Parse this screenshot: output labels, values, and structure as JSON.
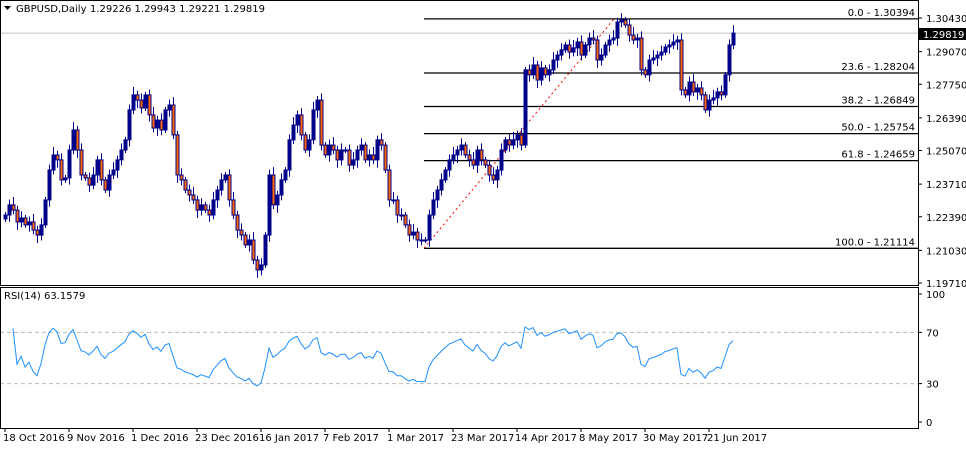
{
  "header": {
    "symbol": "GBPUSD,Daily",
    "ohlc": "1.29226 1.29943 1.29221 1.29819"
  },
  "current_price_label": "1.29819",
  "rsi_label": "RSI(14) 63.1579",
  "colors": {
    "bull": "#00008B",
    "bear": "#FF6600",
    "rsi_line": "#1E90FF",
    "fib_line": "#000000",
    "trend_line": "#FF0000",
    "price_line": "#C0C0C0"
  },
  "chart_data": {
    "type": "candlestick",
    "title": "GBPUSD,Daily",
    "ylim": [
      1.1971,
      1.3043
    ],
    "price_ticks": [
      "1.30430",
      "1.29070",
      "1.27750",
      "1.26390",
      "1.25070",
      "1.23710",
      "1.22390",
      "1.21030",
      "1.19710"
    ],
    "first_open": 1.223,
    "closes": [
      1.2246,
      1.2287,
      1.2266,
      1.2218,
      1.2234,
      1.2206,
      1.2218,
      1.2185,
      1.2165,
      1.2206,
      1.2307,
      1.2428,
      1.2489,
      1.2469,
      1.2388,
      1.2396,
      1.2509,
      1.259,
      1.2509,
      1.2408,
      1.2396,
      1.2367,
      1.2408,
      1.2469,
      1.2388,
      1.2347,
      1.2408,
      1.2428,
      1.2469,
      1.2509,
      1.255,
      1.2671,
      1.2732,
      1.2711,
      1.2679,
      1.2732,
      1.2651,
      1.2598,
      1.263,
      1.259,
      1.2671,
      1.2691,
      1.257,
      1.2408,
      1.2388,
      1.2347,
      1.2327,
      1.2307,
      1.2266,
      1.2287,
      1.2266,
      1.2246,
      1.2307,
      1.2347,
      1.2388,
      1.2408,
      1.2307,
      1.2246,
      1.2185,
      1.2165,
      1.2125,
      1.2145,
      1.2064,
      1.2024,
      1.2044,
      1.2165,
      1.2408,
      1.2287,
      1.2327,
      1.2388,
      1.2428,
      1.255,
      1.261,
      1.2651,
      1.257,
      1.2509,
      1.255,
      1.2671,
      1.2711,
      1.2529,
      1.2489,
      1.2529,
      1.2509,
      1.2469,
      1.2509,
      1.2509,
      1.2448,
      1.2469,
      1.2509,
      1.2529,
      1.2469,
      1.2489,
      1.2469,
      1.255,
      1.2529,
      1.2428,
      1.2307,
      1.2307,
      1.2246,
      1.2246,
      1.2206,
      1.2165,
      1.2177,
      1.2145,
      1.2145,
      1.2145,
      1.2246,
      1.2307,
      1.2347,
      1.2388,
      1.2428,
      1.2469,
      1.2489,
      1.2509,
      1.2529,
      1.2489,
      1.2469,
      1.2448,
      1.2509,
      1.2469,
      1.2448,
      1.2408,
      1.2388,
      1.2428,
      1.2509,
      1.255,
      1.2529,
      1.255,
      1.257,
      1.2529,
      1.2833,
      1.2813,
      1.2853,
      1.2792,
      1.2841,
      1.2813,
      1.2833,
      1.2873,
      1.2893,
      1.2914,
      1.2934,
      1.2905,
      1.2922,
      1.2946,
      1.2893,
      1.2934,
      1.2962,
      1.2954,
      1.2873,
      1.2893,
      1.2934,
      1.2954,
      1.2962,
      1.3027,
      1.3035,
      1.3015,
      1.2974,
      1.2954,
      1.2962,
      1.2833,
      1.2813,
      1.2873,
      1.2881,
      1.2893,
      1.2905,
      1.2926,
      1.2934,
      1.2946,
      1.2954,
      1.2752,
      1.2732,
      1.2784,
      1.2744,
      1.276,
      1.2732,
      1.2671,
      1.2711,
      1.272,
      1.2744,
      1.2732,
      1.2813,
      1.2934,
      1.2982
    ],
    "date_labels": [
      {
        "bar": 0,
        "text": "18 Oct 2016"
      },
      {
        "bar": 16,
        "text": "9 Nov 2016"
      },
      {
        "bar": 32,
        "text": "1 Dec 2016"
      },
      {
        "bar": 48,
        "text": "23 Dec 2016"
      },
      {
        "bar": 64,
        "text": "16 Jan 2017"
      },
      {
        "bar": 80,
        "text": "7 Feb 2017"
      },
      {
        "bar": 96,
        "text": "1 Mar 2017"
      },
      {
        "bar": 112,
        "text": "23 Mar 2017"
      },
      {
        "bar": 128,
        "text": "14 Apr 2017"
      },
      {
        "bar": 144,
        "text": "8 May 2017"
      },
      {
        "bar": 160,
        "text": "30 May 2017"
      },
      {
        "bar": 176,
        "text": "21 Jun 2017"
      }
    ],
    "fibonacci": {
      "from_bar": 104,
      "to_bar": 153,
      "levels": [
        {
          "price": 1.30394,
          "text": "0.0 - 1.30394"
        },
        {
          "price": 1.28204,
          "text": "23.6 - 1.28204"
        },
        {
          "price": 1.26849,
          "text": "38.2 - 1.26849"
        },
        {
          "price": 1.25754,
          "text": "50.0 - 1.25754"
        },
        {
          "price": 1.24659,
          "text": "61.8 - 1.24659"
        },
        {
          "price": 1.21114,
          "text": "100.0 - 1.21114"
        }
      ]
    },
    "current_price": 1.29819,
    "rsi": {
      "period": 14,
      "levels": [
        70,
        30
      ],
      "ticks": [
        "100",
        "70",
        "30",
        "0"
      ],
      "ylim": [
        0,
        100
      ]
    }
  }
}
